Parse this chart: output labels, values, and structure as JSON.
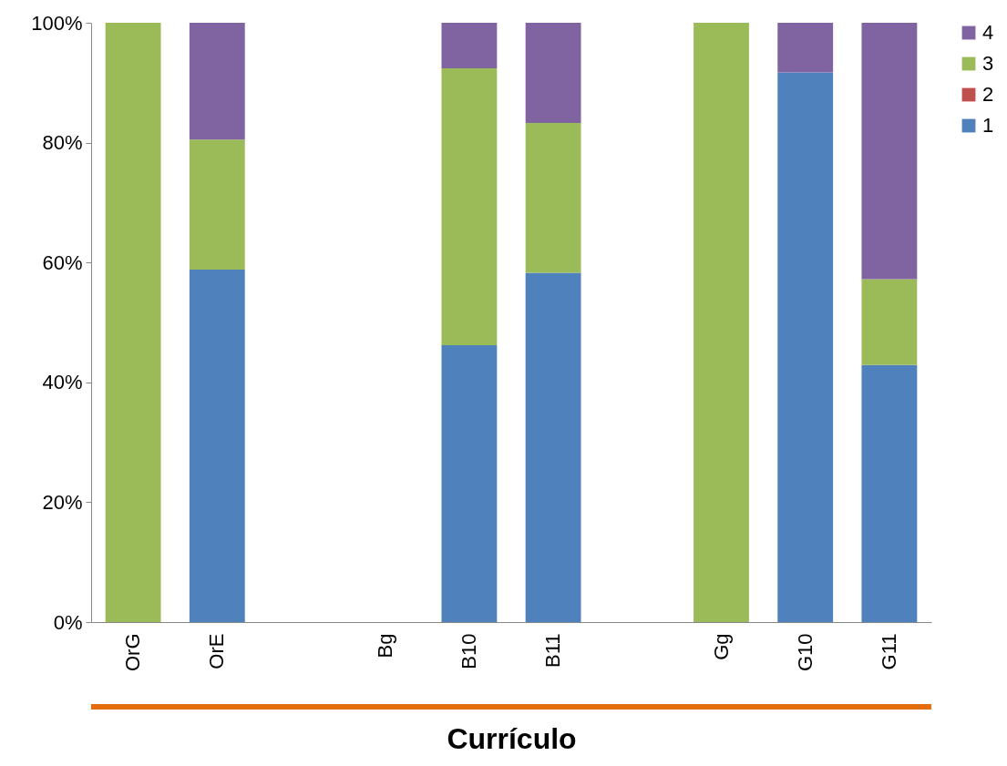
{
  "chart_data": {
    "type": "bar",
    "stacked": true,
    "xlabel": "Currículo",
    "categories": [
      "OrG",
      "OrE",
      null,
      "Bg",
      "B10",
      "B11",
      null,
      "Gg",
      "G10",
      "G11"
    ],
    "series": [
      {
        "name": "1",
        "color": "#4f81bd",
        "values": [
          0,
          58.8,
          0,
          0,
          46.2,
          58.3,
          0,
          0,
          91.7,
          42.9
        ]
      },
      {
        "name": "2",
        "color": "#c0504d",
        "values": [
          0,
          0,
          0,
          0,
          0,
          0,
          0,
          0,
          0,
          0
        ]
      },
      {
        "name": "3",
        "color": "#9bbb59",
        "values": [
          100,
          21.7,
          0,
          0,
          46.2,
          25,
          0,
          100,
          0,
          14.3
        ]
      },
      {
        "name": "4",
        "color": "#8064a2",
        "values": [
          0,
          19.5,
          0,
          0,
          7.6,
          16.7,
          0,
          0,
          8.3,
          42.8
        ]
      }
    ],
    "ylim": [
      0,
      100
    ],
    "yticks": [
      {
        "value": 0,
        "label": "0%"
      },
      {
        "value": 20,
        "label": "20%"
      },
      {
        "value": 40,
        "label": "40%"
      },
      {
        "value": 60,
        "label": "60%"
      },
      {
        "value": 80,
        "label": "80%"
      },
      {
        "value": 100,
        "label": "100%"
      }
    ],
    "grid": false,
    "legend": "right"
  }
}
